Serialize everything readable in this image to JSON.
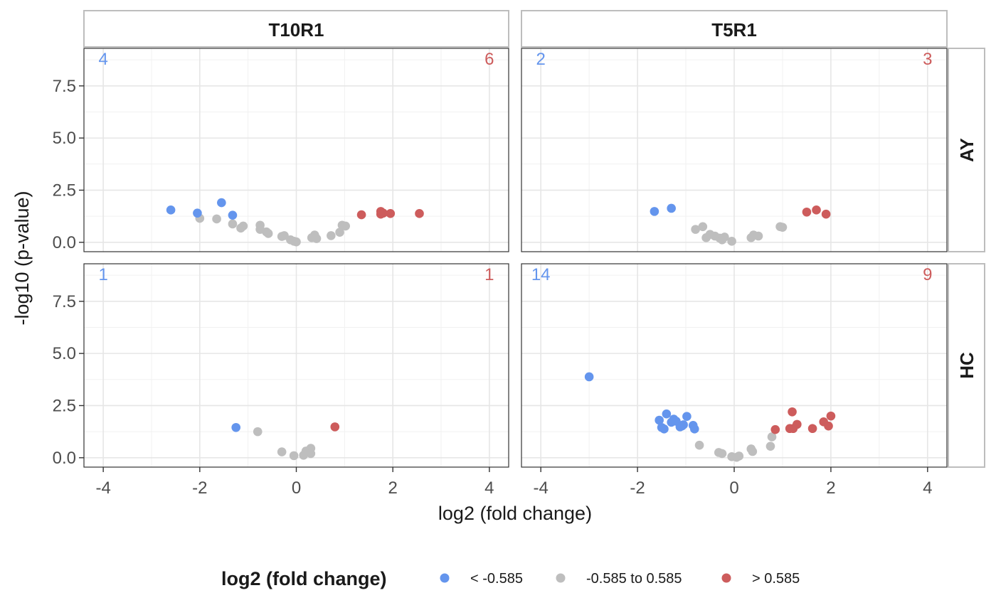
{
  "chart_data": {
    "type": "scatter",
    "facet_columns": [
      "T10R1",
      "T5R1"
    ],
    "facet_rows": [
      "AY",
      "HC"
    ],
    "xlabel": "log2 (fold change)",
    "ylabel": "-log10 (p-value)",
    "xlim": [
      -4.4,
      4.4
    ],
    "ylim": [
      -0.45,
      9.3
    ],
    "x_ticks": [
      -4,
      -2,
      0,
      2,
      4
    ],
    "x_tick_labels": [
      "-4",
      "-2",
      "0",
      "2",
      "4"
    ],
    "y_ticks": [
      0,
      2.5,
      5,
      7.5
    ],
    "y_tick_labels": [
      "0.0",
      "2.5",
      "5.0",
      "7.5"
    ],
    "grid": true,
    "legend": {
      "title": "log2 (fold change)",
      "position": "bottom",
      "items": [
        {
          "label": "< -0.585",
          "color": "#6495ED"
        },
        {
          "label": "-0.585 to 0.585",
          "color": "#BEBEBE"
        },
        {
          "label": "> 0.585",
          "color": "#CD5C5C"
        }
      ]
    },
    "colors": {
      "down": "#6495ED",
      "neutral": "#BEBEBE",
      "up": "#CD5C5C"
    },
    "panels": [
      {
        "col": "T10R1",
        "row": "AY",
        "down_count": "4",
        "up_count": "6",
        "down": [
          [
            -2.6,
            1.55
          ],
          [
            -2.05,
            1.4
          ],
          [
            -1.55,
            1.9
          ],
          [
            -1.32,
            1.3
          ]
        ],
        "neutral": [
          [
            -2.0,
            1.15
          ],
          [
            -1.65,
            1.12
          ],
          [
            -1.32,
            0.88
          ],
          [
            -1.15,
            0.68
          ],
          [
            -1.1,
            0.78
          ],
          [
            -0.75,
            0.62
          ],
          [
            -0.75,
            0.82
          ],
          [
            -0.62,
            0.5
          ],
          [
            -0.58,
            0.42
          ],
          [
            -0.3,
            0.28
          ],
          [
            -0.25,
            0.32
          ],
          [
            -0.12,
            0.12
          ],
          [
            -0.05,
            0.05
          ],
          [
            0.0,
            0.02
          ],
          [
            0.32,
            0.22
          ],
          [
            0.38,
            0.35
          ],
          [
            0.42,
            0.18
          ],
          [
            0.72,
            0.32
          ],
          [
            0.9,
            0.48
          ],
          [
            0.95,
            0.82
          ],
          [
            1.02,
            0.78
          ]
        ],
        "up": [
          [
            1.35,
            1.32
          ],
          [
            1.75,
            1.48
          ],
          [
            1.75,
            1.35
          ],
          [
            1.8,
            1.4
          ],
          [
            1.95,
            1.38
          ],
          [
            2.55,
            1.38
          ]
        ]
      },
      {
        "col": "T5R1",
        "row": "AY",
        "down_count": "2",
        "up_count": "3",
        "down": [
          [
            -1.65,
            1.48
          ],
          [
            -1.3,
            1.63
          ]
        ],
        "neutral": [
          [
            -0.8,
            0.62
          ],
          [
            -0.65,
            0.75
          ],
          [
            -0.58,
            0.22
          ],
          [
            -0.5,
            0.38
          ],
          [
            -0.4,
            0.3
          ],
          [
            -0.3,
            0.2
          ],
          [
            -0.25,
            0.12
          ],
          [
            -0.2,
            0.25
          ],
          [
            -0.05,
            0.05
          ],
          [
            0.35,
            0.22
          ],
          [
            0.4,
            0.35
          ],
          [
            0.5,
            0.3
          ],
          [
            0.95,
            0.75
          ],
          [
            1.0,
            0.72
          ]
        ],
        "up": [
          [
            1.5,
            1.45
          ],
          [
            1.7,
            1.55
          ],
          [
            1.9,
            1.35
          ]
        ]
      },
      {
        "col": "T10R1",
        "row": "HC",
        "down_count": "1",
        "up_count": "1",
        "down": [
          [
            -1.25,
            1.45
          ]
        ],
        "neutral": [
          [
            -0.8,
            1.25
          ],
          [
            -0.3,
            0.28
          ],
          [
            -0.05,
            0.1
          ],
          [
            0.15,
            0.12
          ],
          [
            0.2,
            0.32
          ],
          [
            0.3,
            0.45
          ],
          [
            0.3,
            0.2
          ]
        ],
        "up": [
          [
            0.8,
            1.48
          ]
        ]
      },
      {
        "col": "T5R1",
        "row": "HC",
        "down_count": "14",
        "up_count": "9",
        "down": [
          [
            -3.0,
            3.88
          ],
          [
            -1.55,
            1.8
          ],
          [
            -1.5,
            1.45
          ],
          [
            -1.45,
            1.38
          ],
          [
            -1.4,
            2.1
          ],
          [
            -1.3,
            1.7
          ],
          [
            -1.25,
            1.85
          ],
          [
            -1.2,
            1.75
          ],
          [
            -1.12,
            1.48
          ],
          [
            -1.08,
            1.52
          ],
          [
            -1.05,
            1.58
          ],
          [
            -0.98,
            1.98
          ],
          [
            -0.85,
            1.55
          ],
          [
            -0.82,
            1.38
          ]
        ],
        "neutral": [
          [
            -0.72,
            0.6
          ],
          [
            -0.32,
            0.25
          ],
          [
            -0.25,
            0.2
          ],
          [
            -0.05,
            0.05
          ],
          [
            0.05,
            0.02
          ],
          [
            0.1,
            0.08
          ],
          [
            0.35,
            0.42
          ],
          [
            0.38,
            0.3
          ],
          [
            0.75,
            0.55
          ],
          [
            0.78,
            1.0
          ]
        ],
        "up": [
          [
            0.85,
            1.35
          ],
          [
            1.15,
            1.4
          ],
          [
            1.2,
            2.2
          ],
          [
            1.22,
            1.4
          ],
          [
            1.3,
            1.6
          ],
          [
            1.62,
            1.4
          ],
          [
            1.85,
            1.72
          ],
          [
            1.95,
            1.52
          ],
          [
            2.0,
            2.0
          ]
        ]
      }
    ]
  }
}
